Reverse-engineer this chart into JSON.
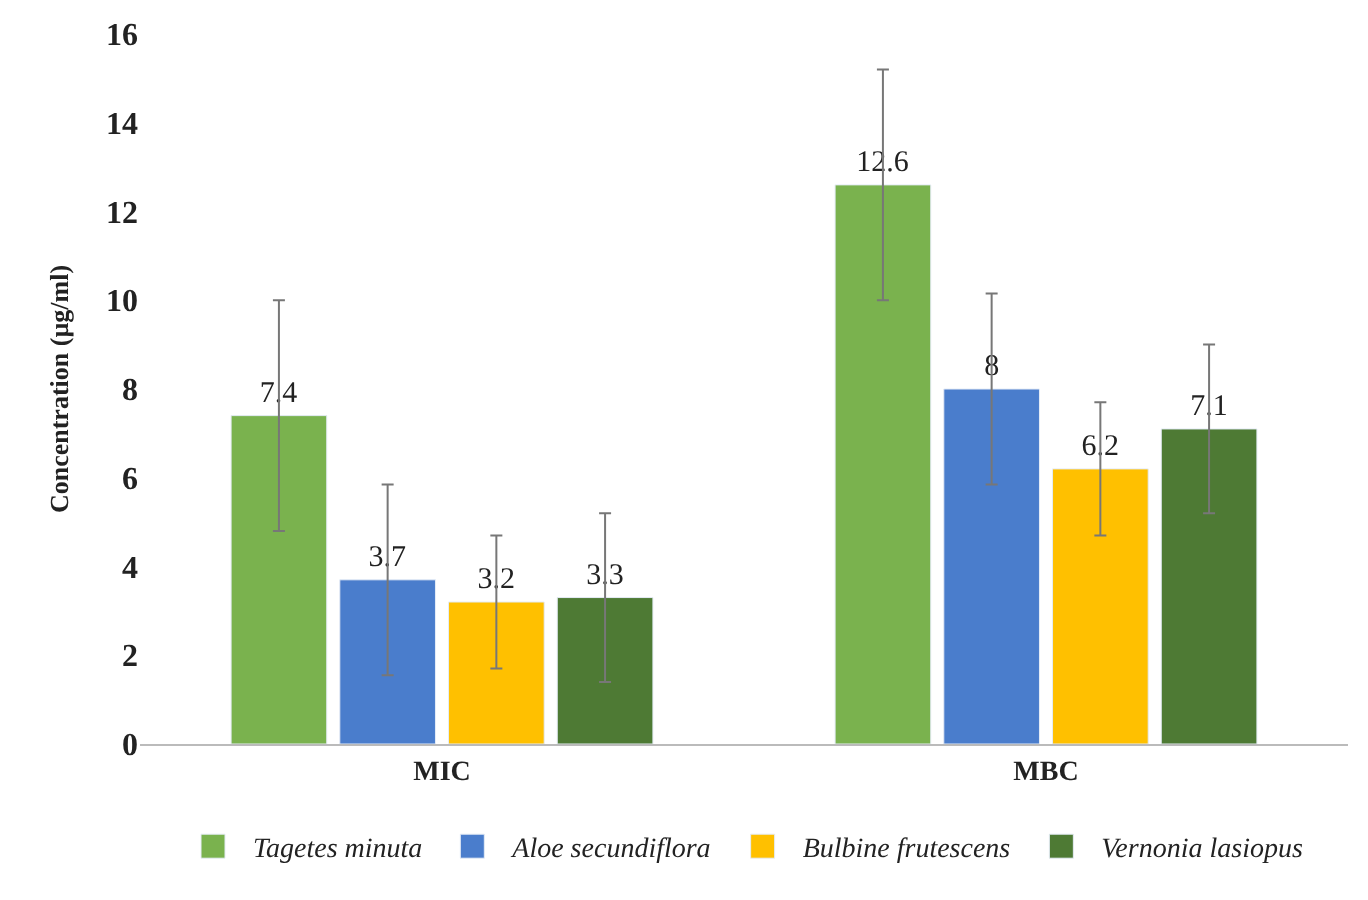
{
  "chart_data": {
    "type": "bar",
    "ylabel": "Concentration (µg/ml)",
    "categories": [
      "MIC",
      "MBC"
    ],
    "series": [
      {
        "name": "Tagetes minuta",
        "color": "#7ab24e",
        "values": [
          7.4,
          12.6
        ],
        "errors": [
          2.6,
          2.6
        ]
      },
      {
        "name": "Aloe secundiflora",
        "color": "#4a7dcc",
        "values": [
          3.7,
          8
        ],
        "errors": [
          2.15,
          2.15
        ]
      },
      {
        "name": "Bulbine frutescens",
        "color": "#ffc000",
        "values": [
          3.2,
          6.2
        ],
        "errors": [
          1.5,
          1.5
        ]
      },
      {
        "name": "Vernonia lasiopus",
        "color": "#4e7a34",
        "values": [
          3.3,
          7.1
        ],
        "errors": [
          1.9,
          1.9
        ]
      }
    ],
    "ylim": [
      0,
      16
    ],
    "yticks": [
      0,
      2,
      4,
      6,
      8,
      10,
      12,
      14,
      16
    ],
    "data_labels": true,
    "grid": false,
    "legend": "bottom"
  }
}
